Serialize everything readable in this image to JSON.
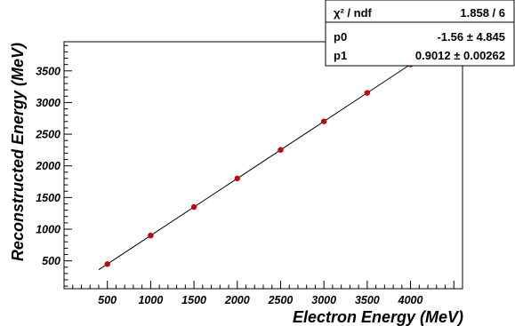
{
  "chart_data": {
    "type": "scatter",
    "title": "",
    "xlabel": "Electron Energy (MeV)",
    "ylabel": "Reconstructed Energy (MeV)",
    "xlim": [
      0,
      4600
    ],
    "ylim": [
      60,
      3960
    ],
    "x_ticks": [
      "500",
      "1000",
      "1500",
      "2000",
      "2500",
      "3000",
      "3500",
      "4000"
    ],
    "y_ticks": [
      "500",
      "1000",
      "1500",
      "2000",
      "2500",
      "3000",
      "3500"
    ],
    "x_tick_values": [
      500,
      1000,
      1500,
      2000,
      2500,
      3000,
      3500,
      4000
    ],
    "y_tick_values": [
      500,
      1000,
      1500,
      2000,
      2500,
      3000,
      3500
    ],
    "series": [
      {
        "x": [
          500,
          1000,
          1500,
          2000,
          2500,
          3000,
          3500,
          4000
        ],
        "y": [
          449,
          899,
          1350,
          1801,
          2252,
          2702,
          3153,
          3603
        ],
        "color": "#cc0000"
      }
    ],
    "fit": {
      "type": "linear",
      "p0": -1.56,
      "p1": 0.9012,
      "x_range": [
        400,
        4040
      ],
      "color": "#000000"
    },
    "stats_box": {
      "rows": [
        {
          "name": "χ² / ndf",
          "value": "1.858 / 6"
        },
        {
          "name": "p0",
          "value": "-1.56 ± 4.845"
        },
        {
          "name": "p1",
          "value": "0.9012 ± 0.00262"
        }
      ]
    },
    "grid": false,
    "legend": "none"
  }
}
